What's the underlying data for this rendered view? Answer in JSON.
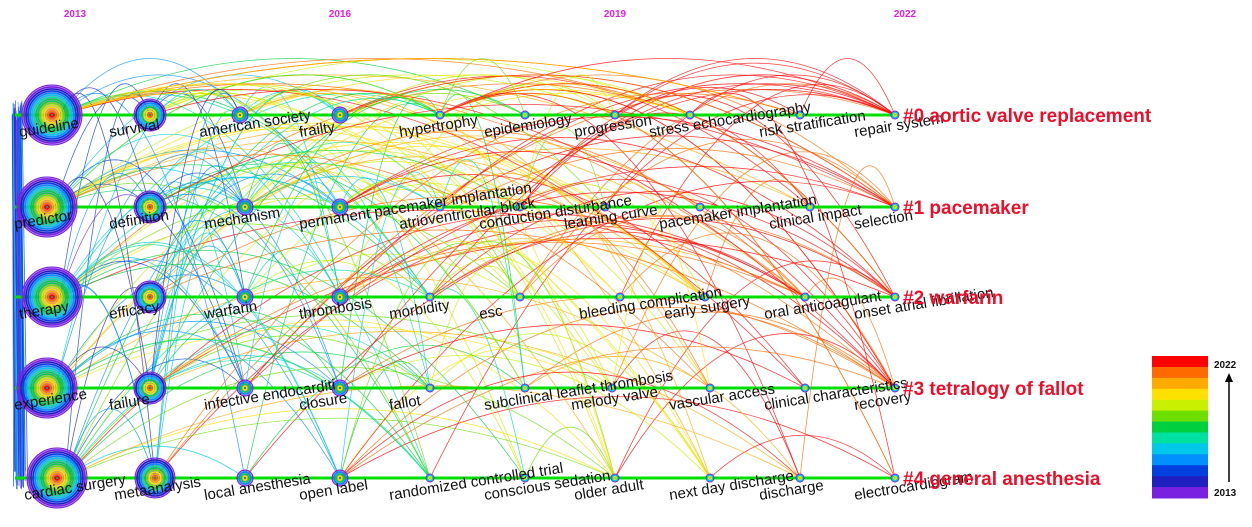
{
  "chart_data": {
    "type": "timeline",
    "years": [
      2013,
      2016,
      2019,
      2022
    ],
    "clusters": [
      {
        "label": "#0 aortic valve replacement",
        "keywords": [
          "guideline",
          "survival",
          "american society",
          "frailty",
          "hypertrophy",
          "epidemiology",
          "progression",
          "stress echocardiography",
          "risk stratification",
          "repair system"
        ]
      },
      {
        "label": "#1 pacemaker",
        "keywords": [
          "predictor",
          "definition",
          "mechanism",
          "permanent pacemaker implantation",
          "atrioventricular block",
          "conduction disturbance",
          "learning curve",
          "pacemaker implantation",
          "clinical impact",
          "selection"
        ]
      },
      {
        "label": "#2 warfarin",
        "keywords": [
          "therapy",
          "efficacy",
          "warfarin",
          "thrombosis",
          "morbidity",
          "esc",
          "bleeding complication",
          "early surgery",
          "oral anticoagulant",
          "onset atrial fibrillation"
        ]
      },
      {
        "label": "#3 tetralogy of fallot",
        "keywords": [
          "experience",
          "failure",
          "infective endocarditi",
          "closure",
          "fallot",
          "subclinical leaflet thrombosis",
          "melody valve",
          "vascular access",
          "clinical characteristics",
          "recovery"
        ]
      },
      {
        "label": "#4 general anesthesia",
        "keywords": [
          "cardiac surgery",
          "metaanalysis",
          "local anesthesia",
          "open label",
          "randomized controlled trial",
          "conscious sedation",
          "older adult",
          "next day discharge",
          "discharge",
          "electrocardiogram"
        ]
      }
    ],
    "color_legend": {
      "top": "2022",
      "bottom": "2013",
      "colors": [
        "#ff0000",
        "#ff6a00",
        "#ffaa00",
        "#ffe000",
        "#c8f000",
        "#6ee000",
        "#00d040",
        "#00e0a0",
        "#00c8e8",
        "#0090ff",
        "#0040e0",
        "#2020c0",
        "#7a20e0"
      ]
    }
  }
}
